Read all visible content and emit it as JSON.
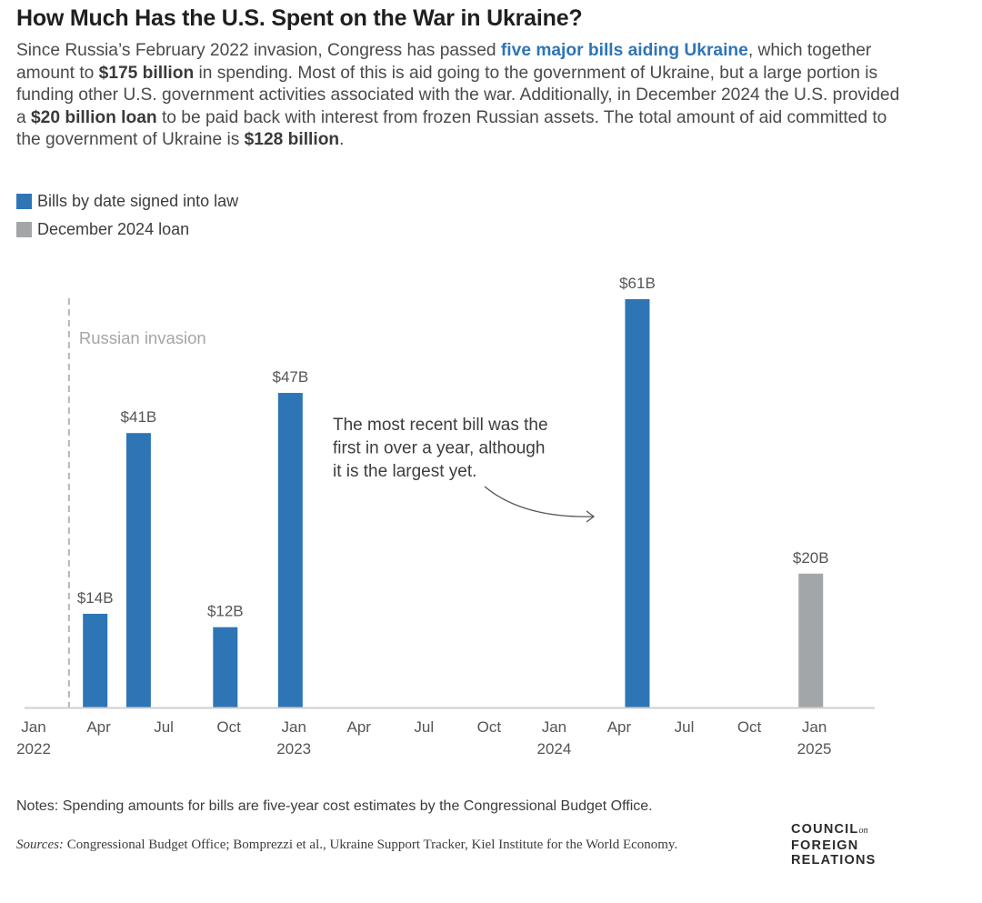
{
  "header": {
    "title": "How Much Has the U.S. Spent on the War in Ukraine?",
    "subtitle": [
      {
        "text": "Since Russia’s February 2022 invasion, Congress has passed ",
        "style": "plain"
      },
      {
        "text": "five major bills aiding Ukraine",
        "style": "link"
      },
      {
        "text": ", which together amount to ",
        "style": "plain"
      },
      {
        "text": "$175 billion",
        "style": "bold"
      },
      {
        "text": " in spending. Most of this is aid going to the government of Ukraine, but a large portion is funding other U.S. government activities associated with the war. Additionally, in December 2024 the U.S. provided a ",
        "style": "plain"
      },
      {
        "text": "$20 billion loan",
        "style": "bold"
      },
      {
        "text": " to be paid back with interest from frozen Russian assets. The total amount of aid committed to the government of Ukraine is ",
        "style": "plain"
      },
      {
        "text": "$128 billion",
        "style": "bold"
      },
      {
        "text": ".",
        "style": "plain"
      }
    ]
  },
  "legend": [
    {
      "label": "Bills by date signed into law",
      "color": "#2e75b6"
    },
    {
      "label": "December 2024 loan",
      "color": "#a3a6a8"
    }
  ],
  "colors": {
    "bill": "#2e75b6",
    "loan": "#a3a6a8",
    "axis": "#cfcfcf",
    "annotation": "#3d3d3d",
    "invasion_line": "#b5b5b5"
  },
  "chart_data": {
    "type": "bar",
    "x_axis": "date",
    "xlim": [
      "2022-01",
      "2025-02"
    ],
    "ylim": [
      0,
      70
    ],
    "y_unit": "$ billions",
    "grid": false,
    "legend_placement": "top-left",
    "series": [
      {
        "name": "Bills by date signed into law",
        "points": [
          {
            "date": "2022-03",
            "value": 14,
            "label": "$14B"
          },
          {
            "date": "2022-05",
            "value": 41,
            "label": "$41B"
          },
          {
            "date": "2022-09",
            "value": 12,
            "label": "$12B"
          },
          {
            "date": "2022-12",
            "value": 47,
            "label": "$47B"
          },
          {
            "date": "2024-04",
            "value": 61,
            "label": "$61B"
          }
        ]
      },
      {
        "name": "December 2024 loan",
        "points": [
          {
            "date": "2024-12",
            "value": 20,
            "label": "$20B"
          }
        ]
      }
    ],
    "x_ticks": [
      {
        "date": "2022-01",
        "label": "Jan",
        "year": "2022"
      },
      {
        "date": "2022-04",
        "label": "Apr",
        "year": ""
      },
      {
        "date": "2022-07",
        "label": "Jul",
        "year": ""
      },
      {
        "date": "2022-10",
        "label": "Oct",
        "year": ""
      },
      {
        "date": "2023-01",
        "label": "Jan",
        "year": "2023"
      },
      {
        "date": "2023-04",
        "label": "Apr",
        "year": ""
      },
      {
        "date": "2023-07",
        "label": "Jul",
        "year": ""
      },
      {
        "date": "2023-10",
        "label": "Oct",
        "year": ""
      },
      {
        "date": "2024-01",
        "label": "Jan",
        "year": "2024"
      },
      {
        "date": "2024-04",
        "label": "Apr",
        "year": ""
      },
      {
        "date": "2024-07",
        "label": "Jul",
        "year": ""
      },
      {
        "date": "2024-10",
        "label": "Oct",
        "year": ""
      },
      {
        "date": "2025-01",
        "label": "Jan",
        "year": "2025"
      }
    ],
    "markers": [
      {
        "date": "2022-02",
        "label": "Russian invasion"
      }
    ],
    "annotations": [
      {
        "lines": [
          "The most recent bill was the",
          "first in over a year, although",
          "it is the largest yet."
        ],
        "points_to": "2024-04"
      }
    ]
  },
  "footer": {
    "note": "Notes: Spending amounts for bills are five-year cost estimates by the Congressional Budget Office.",
    "sources_label": "Sources:",
    "sources_text": " Congressional Budget Office; Bomprezzi et al., Ukraine Support Tracker, Kiel Institute for the World Economy.",
    "logo": {
      "line1": "COUNCIL",
      "line1_small": "on",
      "line2": "FOREIGN",
      "line3": "RELATIONS"
    }
  }
}
